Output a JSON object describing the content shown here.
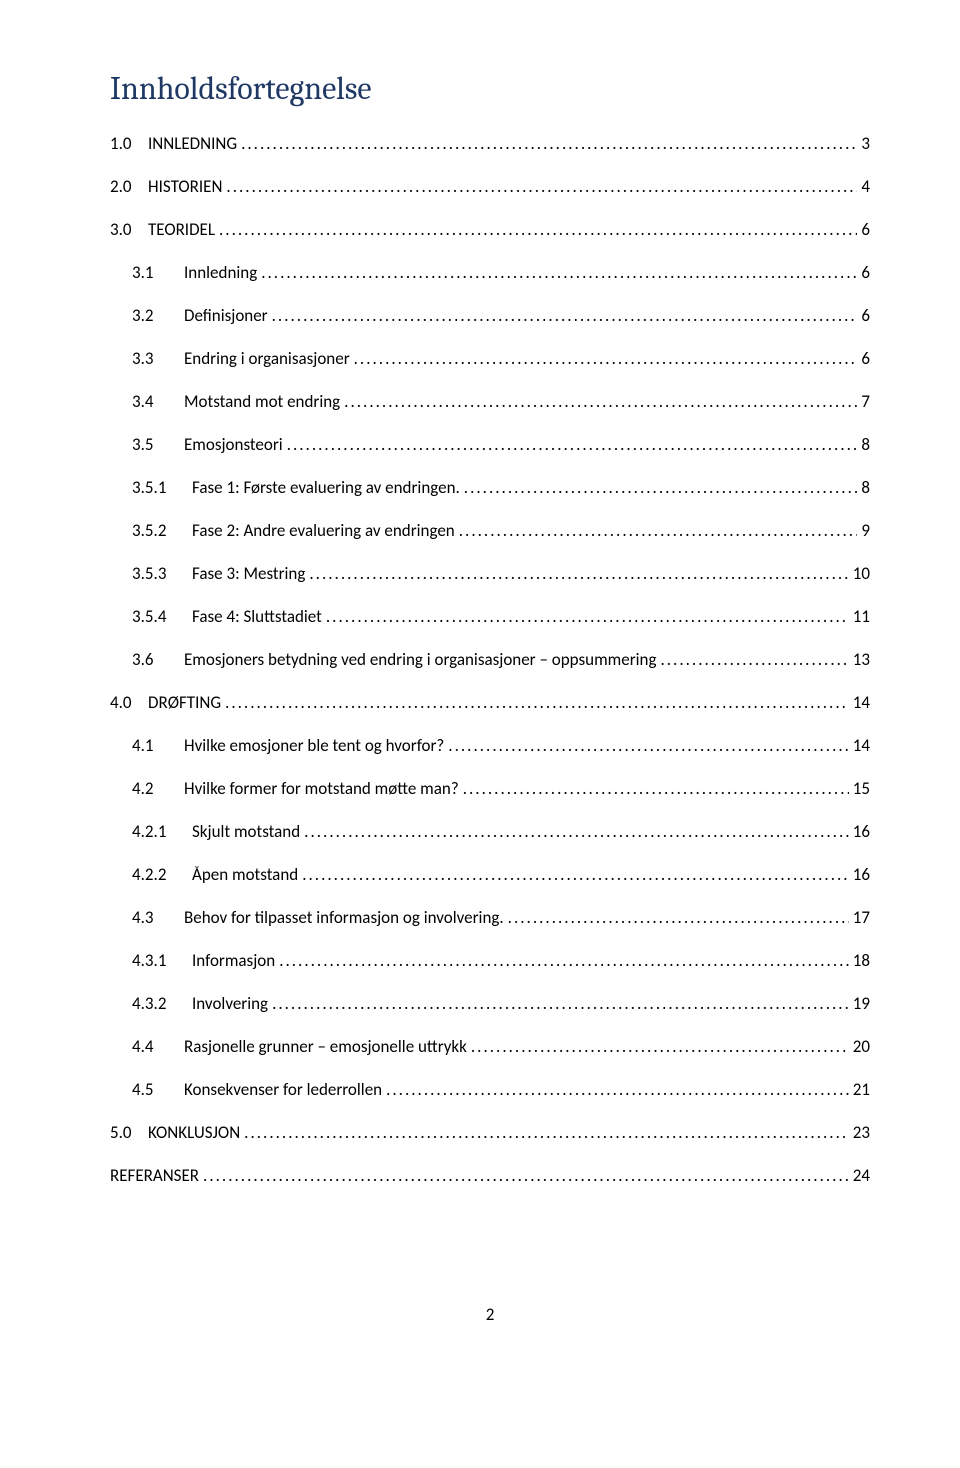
{
  "title": "Innholdsfortegnelse",
  "page_number": "2",
  "leader_char": ".",
  "colors": {
    "title": "#1f3864",
    "text": "#000000",
    "background": "#ffffff"
  },
  "fonts": {
    "title_family": "Cambria, Georgia, serif",
    "title_size_pt": 24,
    "body_family": "Calibri, Segoe UI, Arial, sans-serif",
    "body_size_pt": 13
  },
  "toc": [
    {
      "level": 1,
      "num": "1.0",
      "label": "INNLEDNING",
      "page": "3"
    },
    {
      "level": 1,
      "num": "2.0",
      "label": "HISTORIEN",
      "page": "4"
    },
    {
      "level": 1,
      "num": "3.0",
      "label": "TEORIDEL",
      "page": "6"
    },
    {
      "level": 2,
      "num": "3.1",
      "label": "Innledning",
      "page": "6"
    },
    {
      "level": 2,
      "num": "3.2",
      "label": "Definisjoner",
      "page": "6"
    },
    {
      "level": 2,
      "num": "3.3",
      "label": "Endring i organisasjoner",
      "page": "6"
    },
    {
      "level": 2,
      "num": "3.4",
      "label": "Motstand mot endring",
      "page": "7"
    },
    {
      "level": 2,
      "num": "3.5",
      "label": "Emosjonsteori",
      "page": "8"
    },
    {
      "level": 3,
      "num": "3.5.1",
      "label": "Fase 1: Første evaluering av endringen.",
      "page": "8"
    },
    {
      "level": 3,
      "num": "3.5.2",
      "label": "Fase 2: Andre evaluering av endringen",
      "page": "9"
    },
    {
      "level": 3,
      "num": "3.5.3",
      "label": "Fase 3: Mestring",
      "page": "10"
    },
    {
      "level": 3,
      "num": "3.5.4",
      "label": "Fase 4: Sluttstadiet",
      "page": "11"
    },
    {
      "level": 2,
      "num": "3.6",
      "label": "Emosjoners betydning ved endring i organisasjoner – oppsummering",
      "page": "13"
    },
    {
      "level": 1,
      "num": "4.0",
      "label": "DRØFTING",
      "page": "14"
    },
    {
      "level": 2,
      "num": "4.1",
      "label": "Hvilke emosjoner ble tent og hvorfor?",
      "page": "14"
    },
    {
      "level": 2,
      "num": "4.2",
      "label": "Hvilke former for motstand møtte man?",
      "page": "15"
    },
    {
      "level": 3,
      "num": "4.2.1",
      "label": "Skjult motstand",
      "page": "16"
    },
    {
      "level": 3,
      "num": "4.2.2",
      "label": "Åpen motstand",
      "page": "16"
    },
    {
      "level": 2,
      "num": "4.3",
      "label": "Behov for tilpasset informasjon og involvering.",
      "page": "17"
    },
    {
      "level": 3,
      "num": "4.3.1",
      "label": "Informasjon",
      "page": "18"
    },
    {
      "level": 3,
      "num": "4.3.2",
      "label": "Involvering",
      "page": "19"
    },
    {
      "level": 2,
      "num": "4.4",
      "label": "Rasjonelle grunner – emosjonelle uttrykk",
      "page": "20"
    },
    {
      "level": 2,
      "num": "4.5",
      "label": "Konsekvenser for lederrollen",
      "page": "21"
    },
    {
      "level": 1,
      "num": "5.0",
      "label": "KONKLUSJON",
      "page": "23"
    },
    {
      "level": 1,
      "num": "",
      "label": "REFERANSER",
      "page": "24"
    }
  ]
}
